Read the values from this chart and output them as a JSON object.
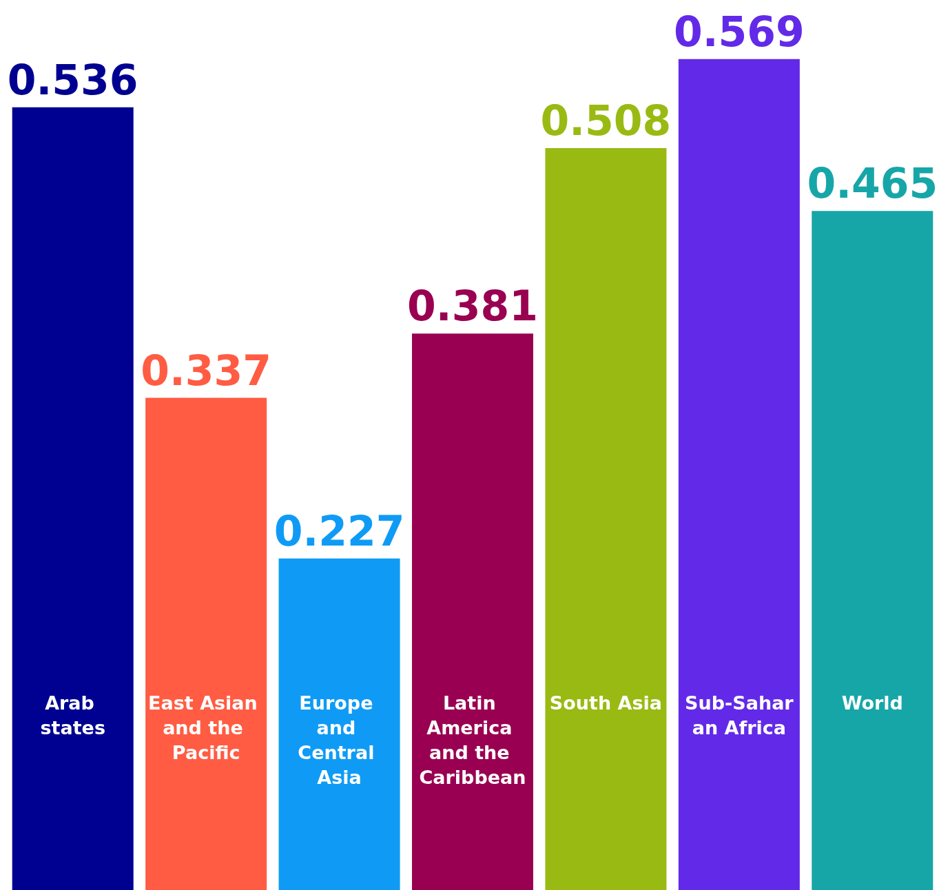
{
  "chart_data": {
    "type": "bar",
    "categories": [
      "Arab states",
      "East Asian and the Pacific",
      "Europe and Central Asia",
      "Latin America and the Caribbean",
      "South Asia",
      "Sub-Saharan Africa",
      "World"
    ],
    "values": [
      0.536,
      0.337,
      0.227,
      0.381,
      0.508,
      0.569,
      0.465
    ],
    "colors": [
      "#000091",
      "#ff5c43",
      "#0f9bf5",
      "#990051",
      "#99ba12",
      "#622ae8",
      "#17a6a8"
    ],
    "data_labels": true
  }
}
